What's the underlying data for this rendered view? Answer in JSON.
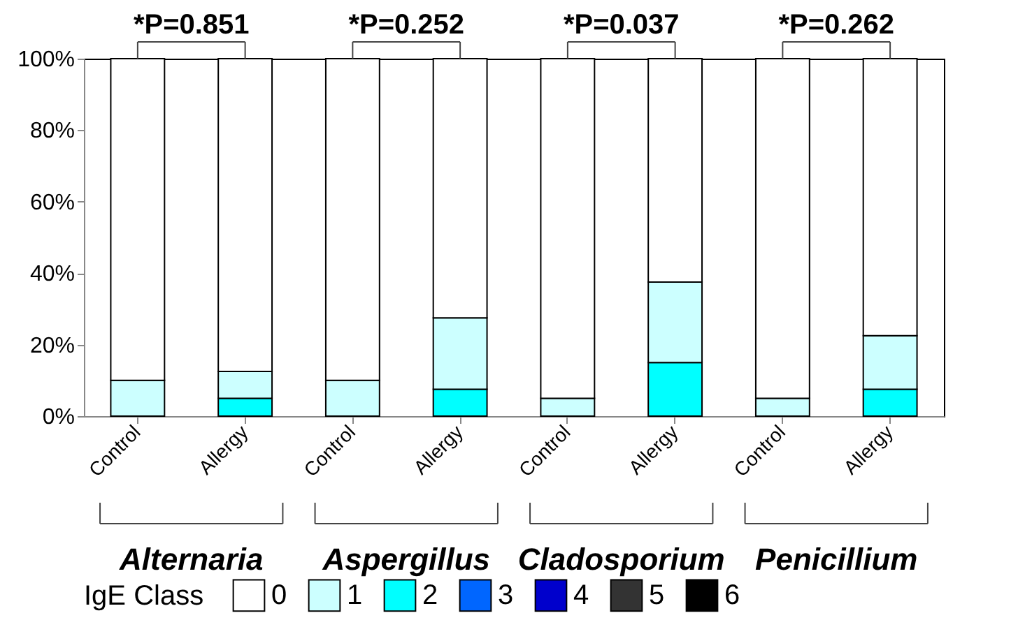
{
  "chart_data": {
    "type": "bar",
    "stacked": true,
    "legend_title": "IgE Class",
    "legend": "bottom",
    "grid": false,
    "categories": [
      "Control",
      "Allergy",
      "Control",
      "Allergy",
      "Control",
      "Allergy",
      "Control",
      "Allergy"
    ],
    "series": [
      {
        "name": "6",
        "color": "#000000",
        "values": [
          0,
          0,
          0,
          0,
          0,
          0,
          0,
          0
        ]
      },
      {
        "name": "5",
        "color": "#333333",
        "values": [
          0,
          0,
          0,
          0,
          0,
          0,
          0,
          0
        ]
      },
      {
        "name": "4",
        "color": "#0000cc",
        "values": [
          0,
          0,
          0,
          0,
          0,
          0,
          0,
          0
        ]
      },
      {
        "name": "3",
        "color": "#0066ff",
        "values": [
          0,
          0,
          0,
          0,
          0,
          0,
          0,
          0
        ]
      },
      {
        "name": "2",
        "color": "#00ffff",
        "values": [
          0,
          5,
          0,
          7.5,
          0,
          15,
          0,
          7.5
        ]
      },
      {
        "name": "1",
        "color": "#ccffff",
        "values": [
          10,
          7.5,
          10,
          20,
          5,
          22.5,
          5,
          15
        ]
      },
      {
        "name": "0",
        "color": "#ffffff",
        "values": [
          90,
          87.5,
          90,
          72.5,
          95,
          62.5,
          95,
          77.5
        ]
      }
    ],
    "ylim": [
      0,
      100
    ],
    "yticks": [
      {
        "value": 0,
        "label": "0%"
      },
      {
        "value": 20,
        "label": "20%"
      },
      {
        "value": 40,
        "label": "40%"
      },
      {
        "value": 60,
        "label": "60%"
      },
      {
        "value": 80,
        "label": "80%"
      },
      {
        "value": 100,
        "label": "100%"
      }
    ],
    "annotations": [
      "*P=0.851",
      "*P=0.252",
      "*P=0.037",
      "*P=0.262",
      "Alternaria",
      "Aspergillus",
      "Cladosporium",
      "Penicillium"
    ]
  }
}
